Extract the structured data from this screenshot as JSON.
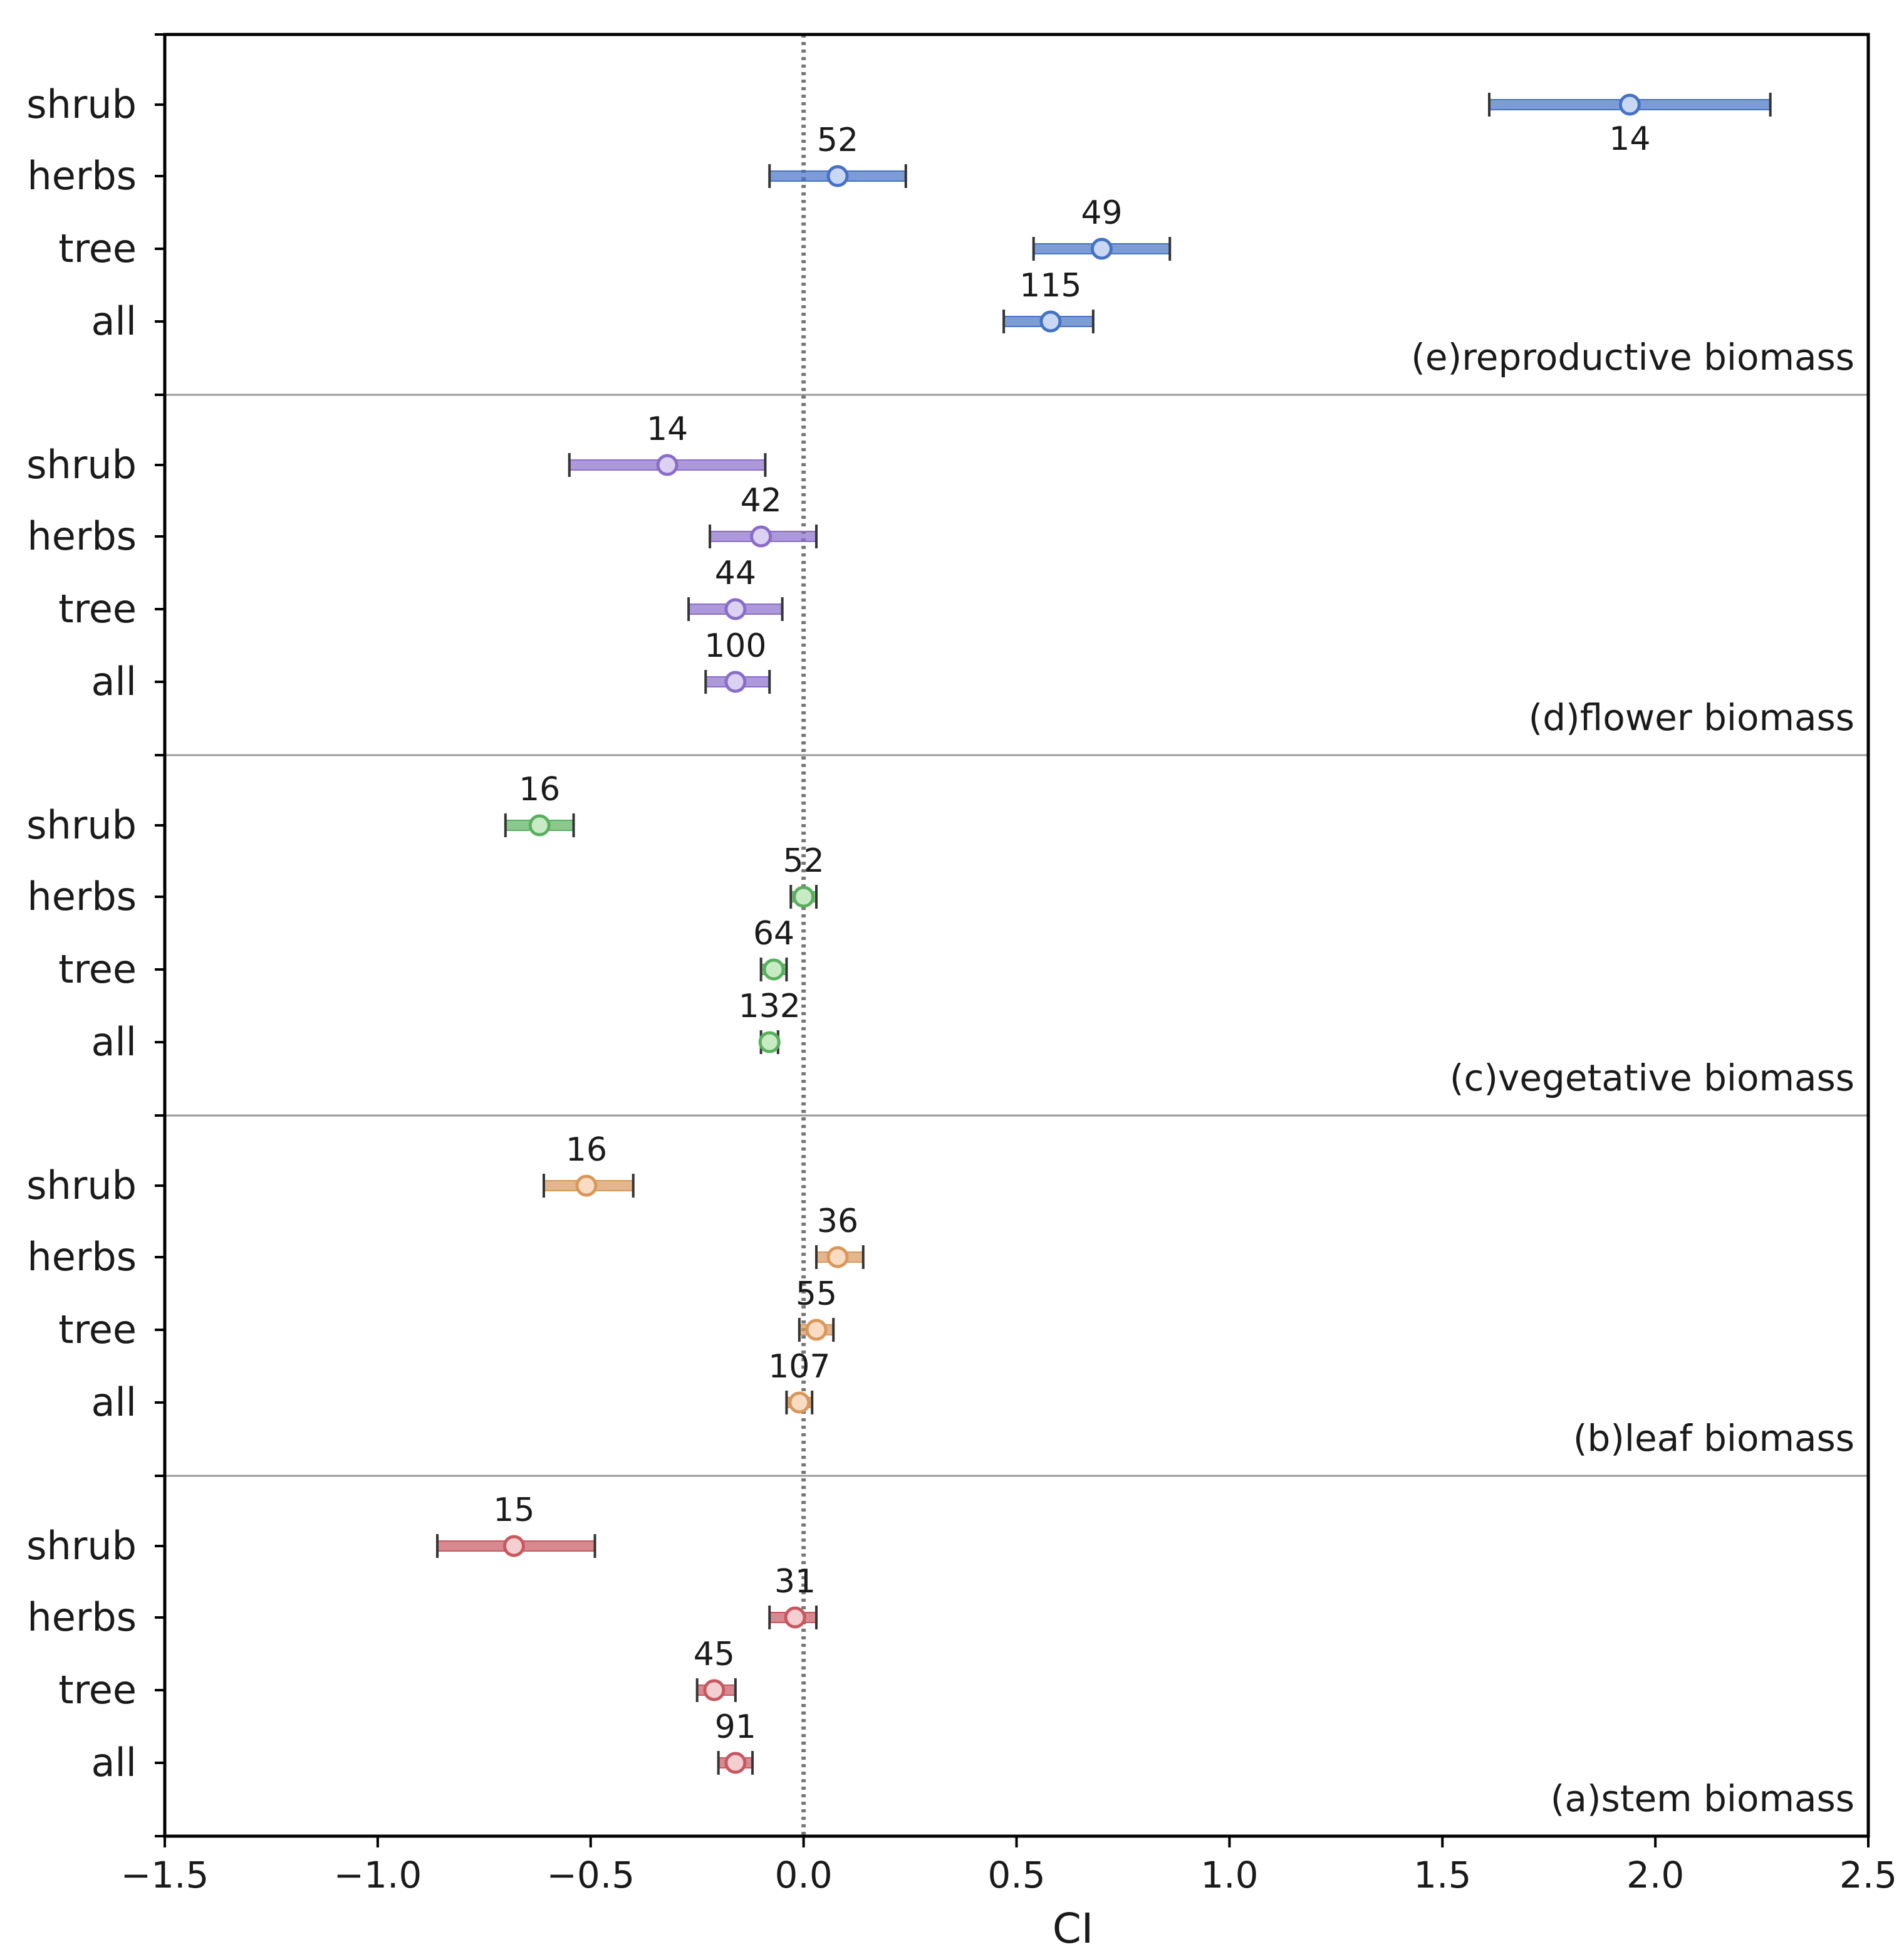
{
  "chart_data": {
    "type": "scatter",
    "subtype": "forest-plot",
    "xlabel": "CI",
    "xlim": [
      -1.5,
      2.5
    ],
    "xticks": [
      -1.5,
      -1.0,
      -0.5,
      0.0,
      0.5,
      1.0,
      1.5,
      2.0,
      2.5
    ],
    "xtick_labels": [
      "−1.5",
      "−1.0",
      "−0.5",
      "0.0",
      "0.5",
      "1.0",
      "1.5",
      "2.0",
      "2.5"
    ],
    "reference_line": 0.0,
    "categories": [
      "shrub",
      "herbs",
      "tree",
      "all"
    ],
    "panels": [
      {
        "label": "(e)reproductive biomass",
        "color": "#4472c4",
        "fill": "#c9d7f2",
        "rows": [
          {
            "category": "shrub",
            "mean": 1.94,
            "lower": 1.61,
            "upper": 2.27,
            "n": "14",
            "n_pos": "below"
          },
          {
            "category": "herbs",
            "mean": 0.08,
            "lower": -0.08,
            "upper": 0.24,
            "n": "52",
            "n_pos": "above"
          },
          {
            "category": "tree",
            "mean": 0.7,
            "lower": 0.54,
            "upper": 0.86,
            "n": "49",
            "n_pos": "above"
          },
          {
            "category": "all",
            "mean": 0.58,
            "lower": 0.47,
            "upper": 0.68,
            "n": "115",
            "n_pos": "above"
          }
        ]
      },
      {
        "label": "(d)flower biomass",
        "color": "#8a6cc9",
        "fill": "#ddd1f2",
        "rows": [
          {
            "category": "shrub",
            "mean": -0.32,
            "lower": -0.55,
            "upper": -0.09,
            "n": "14",
            "n_pos": "above"
          },
          {
            "category": "herbs",
            "mean": -0.1,
            "lower": -0.22,
            "upper": 0.03,
            "n": "42",
            "n_pos": "above"
          },
          {
            "category": "tree",
            "mean": -0.16,
            "lower": -0.27,
            "upper": -0.05,
            "n": "44",
            "n_pos": "above"
          },
          {
            "category": "all",
            "mean": -0.16,
            "lower": -0.23,
            "upper": -0.08,
            "n": "100",
            "n_pos": "above"
          }
        ]
      },
      {
        "label": "(c)vegetative biomass",
        "color": "#58b05c",
        "fill": "#c8ebc6",
        "rows": [
          {
            "category": "shrub",
            "mean": -0.62,
            "lower": -0.7,
            "upper": -0.54,
            "n": "16",
            "n_pos": "above"
          },
          {
            "category": "herbs",
            "mean": 0.0,
            "lower": -0.03,
            "upper": 0.03,
            "n": "52",
            "n_pos": "above"
          },
          {
            "category": "tree",
            "mean": -0.07,
            "lower": -0.1,
            "upper": -0.04,
            "n": "64",
            "n_pos": "above"
          },
          {
            "category": "all",
            "mean": -0.08,
            "lower": -0.1,
            "upper": -0.06,
            "n": "132",
            "n_pos": "above"
          }
        ]
      },
      {
        "label": "(b)leaf biomass",
        "color": "#d9975a",
        "fill": "#f7dcc3",
        "rows": [
          {
            "category": "shrub",
            "mean": -0.51,
            "lower": -0.61,
            "upper": -0.4,
            "n": "16",
            "n_pos": "above"
          },
          {
            "category": "herbs",
            "mean": 0.08,
            "lower": 0.03,
            "upper": 0.14,
            "n": "36",
            "n_pos": "above"
          },
          {
            "category": "tree",
            "mean": 0.03,
            "lower": -0.01,
            "upper": 0.07,
            "n": "55",
            "n_pos": "above"
          },
          {
            "category": "all",
            "mean": -0.01,
            "lower": -0.04,
            "upper": 0.02,
            "n": "107",
            "n_pos": "above"
          }
        ]
      },
      {
        "label": "(a)stem biomass",
        "color": "#c8575f",
        "fill": "#f4cfd2",
        "rows": [
          {
            "category": "shrub",
            "mean": -0.68,
            "lower": -0.86,
            "upper": -0.49,
            "n": "15",
            "n_pos": "above"
          },
          {
            "category": "herbs",
            "mean": -0.02,
            "lower": -0.08,
            "upper": 0.03,
            "n": "31",
            "n_pos": "above"
          },
          {
            "category": "tree",
            "mean": -0.21,
            "lower": -0.25,
            "upper": -0.16,
            "n": "45",
            "n_pos": "above"
          },
          {
            "category": "all",
            "mean": -0.16,
            "lower": -0.2,
            "upper": -0.12,
            "n": "91",
            "n_pos": "above"
          }
        ]
      }
    ]
  }
}
